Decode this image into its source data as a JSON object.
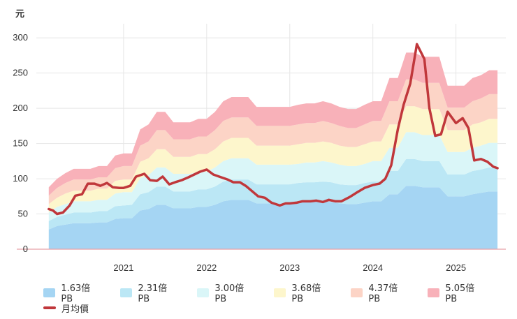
{
  "chart_data": {
    "type": "area",
    "title": "",
    "y_unit": "元",
    "ylim": [
      0,
      320
    ],
    "yticks": [
      "0",
      "50",
      "100",
      "150",
      "200",
      "250",
      "300"
    ],
    "x_ticks": [
      "2021",
      "2022",
      "2023",
      "2024",
      "2025"
    ],
    "x_tick_positions": [
      2021.0,
      2022.0,
      2023.0,
      2024.0,
      2025.0
    ],
    "grid": true,
    "legend_position": "bottom",
    "x": [
      2020.1,
      2020.2,
      2020.3,
      2020.4,
      2020.5,
      2020.6,
      2020.7,
      2020.8,
      2020.9,
      2021.0,
      2021.1,
      2021.2,
      2021.3,
      2021.4,
      2021.5,
      2021.6,
      2021.7,
      2021.8,
      2021.9,
      2022.0,
      2022.1,
      2022.2,
      2022.3,
      2022.4,
      2022.5,
      2022.6,
      2022.7,
      2022.8,
      2022.9,
      2023.0,
      2023.1,
      2023.2,
      2023.3,
      2023.4,
      2023.5,
      2023.6,
      2023.7,
      2023.8,
      2023.9,
      2024.0,
      2024.1,
      2024.2,
      2024.3,
      2024.4,
      2024.5,
      2024.6,
      2024.7,
      2024.8,
      2024.9,
      2025.0,
      2025.1,
      2025.2,
      2025.3,
      2025.4,
      2025.5
    ],
    "series": [
      {
        "name": "1.63倍PB",
        "color": "#a5d5f3",
        "values": [
          28,
          33,
          35,
          37,
          37,
          37,
          38,
          38,
          43,
          44,
          44,
          55,
          57,
          63,
          63,
          58,
          58,
          58,
          60,
          60,
          63,
          68,
          70,
          70,
          70,
          65,
          65,
          65,
          65,
          65,
          66,
          67,
          67,
          68,
          67,
          65,
          64,
          64,
          66,
          68,
          68,
          78,
          78,
          90,
          90,
          88,
          88,
          88,
          75,
          75,
          75,
          78,
          80,
          82,
          82
        ]
      },
      {
        "name": "2.31倍PB",
        "color": "#bbe7f5",
        "values": [
          40,
          46,
          49,
          52,
          52,
          52,
          54,
          54,
          61,
          62,
          63,
          78,
          81,
          89,
          89,
          82,
          82,
          82,
          85,
          85,
          89,
          96,
          99,
          99,
          99,
          92,
          92,
          92,
          92,
          92,
          94,
          95,
          95,
          96,
          95,
          92,
          91,
          91,
          94,
          96,
          96,
          111,
          111,
          128,
          128,
          125,
          125,
          125,
          106,
          106,
          106,
          111,
          113,
          116,
          116
        ]
      },
      {
        "name": "3.00倍PB",
        "color": "#daf6f8",
        "values": [
          52,
          60,
          64,
          68,
          68,
          68,
          70,
          70,
          79,
          81,
          81,
          101,
          105,
          116,
          116,
          107,
          107,
          107,
          110,
          110,
          116,
          125,
          129,
          129,
          129,
          120,
          120,
          120,
          120,
          120,
          121,
          123,
          123,
          125,
          123,
          120,
          118,
          118,
          121,
          125,
          125,
          144,
          144,
          166,
          166,
          162,
          162,
          162,
          138,
          138,
          138,
          144,
          147,
          151,
          151
        ]
      },
      {
        "name": "3.68倍PB",
        "color": "#fdf6cc",
        "values": [
          64,
          73,
          79,
          83,
          83,
          83,
          86,
          86,
          97,
          99,
          99,
          124,
          129,
          142,
          142,
          131,
          131,
          131,
          135,
          135,
          142,
          153,
          158,
          158,
          158,
          147,
          147,
          147,
          147,
          147,
          149,
          151,
          151,
          153,
          151,
          147,
          145,
          145,
          149,
          153,
          153,
          177,
          177,
          203,
          203,
          199,
          199,
          199,
          169,
          169,
          169,
          177,
          180,
          185,
          185
        ]
      },
      {
        "name": "4.37倍PB",
        "color": "#fcd4c6",
        "values": [
          76,
          87,
          94,
          99,
          99,
          99,
          102,
          102,
          115,
          118,
          118,
          147,
          153,
          169,
          169,
          156,
          156,
          156,
          160,
          160,
          169,
          182,
          187,
          187,
          187,
          175,
          175,
          175,
          175,
          175,
          177,
          179,
          179,
          182,
          179,
          175,
          172,
          172,
          177,
          182,
          182,
          210,
          210,
          241,
          241,
          236,
          236,
          236,
          201,
          201,
          201,
          210,
          214,
          220,
          220
        ]
      },
      {
        "name": "5.05倍PB",
        "color": "#f8b1b9",
        "values": [
          88,
          100,
          108,
          114,
          114,
          114,
          118,
          118,
          133,
          136,
          136,
          170,
          177,
          195,
          195,
          180,
          180,
          180,
          185,
          185,
          195,
          210,
          216,
          216,
          216,
          202,
          202,
          202,
          202,
          202,
          205,
          207,
          207,
          210,
          207,
          202,
          199,
          199,
          205,
          210,
          210,
          243,
          243,
          279,
          279,
          273,
          273,
          273,
          232,
          232,
          232,
          243,
          247,
          254,
          254
        ]
      }
    ],
    "price_series": {
      "name": "月均價",
      "color": "#c0373b",
      "x": [
        2020.1,
        2020.15,
        2020.2,
        2020.27,
        2020.35,
        2020.42,
        2020.5,
        2020.57,
        2020.65,
        2020.72,
        2020.8,
        2020.87,
        2020.95,
        2021.0,
        2021.08,
        2021.15,
        2021.25,
        2021.32,
        2021.4,
        2021.47,
        2021.55,
        2021.62,
        2021.7,
        2021.78,
        2021.85,
        2021.92,
        2022.0,
        2022.08,
        2022.15,
        2022.25,
        2022.32,
        2022.4,
        2022.47,
        2022.55,
        2022.62,
        2022.7,
        2022.78,
        2022.88,
        2022.95,
        2023.0,
        2023.08,
        2023.15,
        2023.25,
        2023.32,
        2023.4,
        2023.47,
        2023.55,
        2023.62,
        2023.72,
        2023.8,
        2023.9,
        2024.0,
        2024.08,
        2024.15,
        2024.22,
        2024.3,
        2024.37,
        2024.45,
        2024.53,
        2024.62,
        2024.68,
        2024.75,
        2024.82,
        2024.9,
        2025.0,
        2025.08,
        2025.15,
        2025.22,
        2025.3,
        2025.38,
        2025.45,
        2025.5
      ],
      "values": [
        57,
        55,
        50,
        52,
        62,
        76,
        78,
        93,
        93,
        90,
        94,
        88,
        87,
        87,
        90,
        103,
        107,
        98,
        97,
        103,
        92,
        95,
        98,
        102,
        106,
        110,
        113,
        106,
        103,
        99,
        95,
        95,
        90,
        82,
        75,
        73,
        66,
        62,
        65,
        65,
        66,
        68,
        68,
        69,
        67,
        70,
        68,
        68,
        74,
        80,
        87,
        91,
        93,
        100,
        119,
        170,
        205,
        235,
        291,
        270,
        200,
        161,
        163,
        195,
        179,
        186,
        172,
        126,
        128,
        124,
        117,
        115
      ]
    }
  },
  "legend": {
    "row1": [
      {
        "label": "1.63倍PB",
        "color": "#a5d5f3"
      },
      {
        "label": "2.31倍PB",
        "color": "#bbe7f5"
      },
      {
        "label": "3.00倍PB",
        "color": "#daf6f8"
      },
      {
        "label": "3.68倍PB",
        "color": "#fdf6cc"
      },
      {
        "label": "4.37倍PB",
        "color": "#fcd4c6"
      },
      {
        "label": "5.05倍PB",
        "color": "#f8b1b9"
      }
    ],
    "row2": {
      "label": "月均價",
      "color": "#c0373b"
    }
  }
}
